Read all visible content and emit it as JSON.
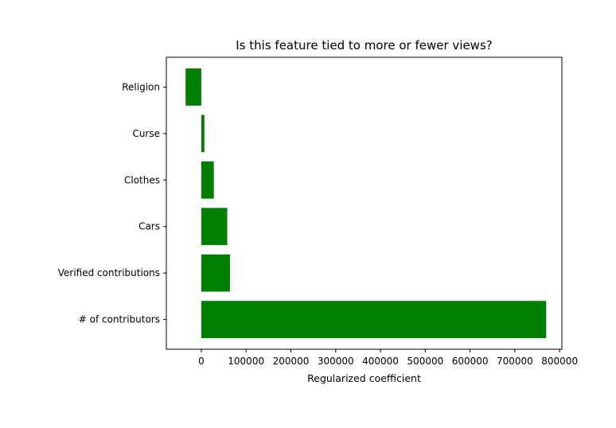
{
  "chart_data": {
    "type": "bar",
    "orientation": "horizontal",
    "title": "Is this feature tied to more or fewer views?",
    "xlabel": "Regularized coefficient",
    "ylabel": "",
    "categories": [
      "# of contributors",
      "Verified contributions",
      "Cars",
      "Clothes",
      "Curse",
      "Religion"
    ],
    "values": [
      770000,
      64000,
      58000,
      28000,
      7000,
      -35000
    ],
    "xlim": [
      -78000,
      805000
    ],
    "xticks": [
      0,
      100000,
      200000,
      300000,
      400000,
      500000,
      600000,
      700000,
      800000
    ],
    "xtick_labels": [
      "0",
      "100000",
      "200000",
      "300000",
      "400000",
      "500000",
      "600000",
      "700000",
      "800000"
    ],
    "bar_color": "#008000",
    "grid": false,
    "legend": "none"
  }
}
